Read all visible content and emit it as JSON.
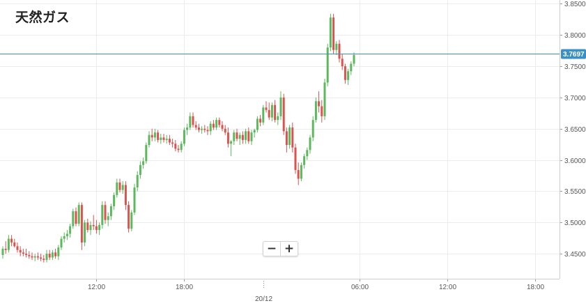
{
  "title": "天然ガス",
  "zoom": {
    "out_label": "−",
    "in_label": "+"
  },
  "colors": {
    "up": "#5cb85c",
    "down": "#d9534f",
    "grid": "#ececec",
    "price_line": "#3a8fc4",
    "axis": "#999999"
  },
  "chart_data": {
    "type": "candlestick",
    "title": "天然ガス",
    "y_ticks": [
      3.45,
      3.5,
      3.55,
      3.6,
      3.65,
      3.7,
      3.75,
      3.8,
      3.85
    ],
    "y_tick_labels": [
      "3.4500",
      "3.5000",
      "3.5500",
      "3.6000",
      "3.6500",
      "3.7000",
      "3.7500",
      "3.8000",
      "3.8500"
    ],
    "ylim": [
      3.41,
      3.856
    ],
    "x_ticks": [
      {
        "index": 32,
        "label": "12:00"
      },
      {
        "index": 62,
        "label": "18:00"
      },
      {
        "index": 89,
        "label": "20/12",
        "date_marker": true
      },
      {
        "index": 122,
        "label": "06:00"
      },
      {
        "index": 152,
        "label": "12:00"
      },
      {
        "index": 182,
        "label": "18:00"
      }
    ],
    "current_price": 3.7697,
    "current_price_label": "3.7697",
    "candles": [
      [
        3.448,
        3.462,
        3.442,
        3.458
      ],
      [
        3.458,
        3.47,
        3.45,
        3.456
      ],
      [
        3.456,
        3.48,
        3.452,
        3.474
      ],
      [
        3.474,
        3.48,
        3.462,
        3.468
      ],
      [
        3.468,
        3.474,
        3.46,
        3.462
      ],
      [
        3.462,
        3.468,
        3.452,
        3.456
      ],
      [
        3.456,
        3.462,
        3.446,
        3.452
      ],
      [
        3.452,
        3.458,
        3.446,
        3.45
      ],
      [
        3.45,
        3.458,
        3.444,
        3.448
      ],
      [
        3.448,
        3.454,
        3.442,
        3.446
      ],
      [
        3.446,
        3.452,
        3.44,
        3.444
      ],
      [
        3.444,
        3.45,
        3.438,
        3.446
      ],
      [
        3.446,
        3.452,
        3.44,
        3.444
      ],
      [
        3.444,
        3.45,
        3.438,
        3.442
      ],
      [
        3.442,
        3.448,
        3.436,
        3.44
      ],
      [
        3.44,
        3.456,
        3.436,
        3.45
      ],
      [
        3.45,
        3.456,
        3.44,
        3.444
      ],
      [
        3.444,
        3.456,
        3.44,
        3.452
      ],
      [
        3.452,
        3.458,
        3.442,
        3.446
      ],
      [
        3.446,
        3.464,
        3.44,
        3.46
      ],
      [
        3.46,
        3.478,
        3.456,
        3.474
      ],
      [
        3.474,
        3.484,
        3.468,
        3.478
      ],
      [
        3.478,
        3.488,
        3.472,
        3.482
      ],
      [
        3.482,
        3.498,
        3.476,
        3.494
      ],
      [
        3.494,
        3.522,
        3.49,
        3.518
      ],
      [
        3.518,
        3.524,
        3.494,
        3.498
      ],
      [
        3.498,
        3.532,
        3.494,
        3.528
      ],
      [
        3.528,
        3.532,
        3.456,
        3.468
      ],
      [
        3.468,
        3.504,
        3.462,
        3.5
      ],
      [
        3.5,
        3.506,
        3.484,
        3.488
      ],
      [
        3.488,
        3.502,
        3.48,
        3.496
      ],
      [
        3.496,
        3.512,
        3.488,
        3.494
      ],
      [
        3.494,
        3.504,
        3.482,
        3.488
      ],
      [
        3.488,
        3.5,
        3.48,
        3.496
      ],
      [
        3.496,
        3.534,
        3.49,
        3.528
      ],
      [
        3.528,
        3.534,
        3.498,
        3.504
      ],
      [
        3.504,
        3.516,
        3.494,
        3.51
      ],
      [
        3.51,
        3.53,
        3.504,
        3.526
      ],
      [
        3.526,
        3.548,
        3.52,
        3.544
      ],
      [
        3.544,
        3.57,
        3.54,
        3.564
      ],
      [
        3.564,
        3.57,
        3.548,
        3.552
      ],
      [
        3.552,
        3.566,
        3.546,
        3.56
      ],
      [
        3.56,
        3.566,
        3.52,
        3.528
      ],
      [
        3.528,
        3.534,
        3.484,
        3.49
      ],
      [
        3.49,
        3.52,
        3.486,
        3.516
      ],
      [
        3.516,
        3.562,
        3.512,
        3.556
      ],
      [
        3.556,
        3.582,
        3.55,
        3.576
      ],
      [
        3.576,
        3.598,
        3.57,
        3.592
      ],
      [
        3.592,
        3.604,
        3.586,
        3.598
      ],
      [
        3.598,
        3.628,
        3.594,
        3.624
      ],
      [
        3.624,
        3.646,
        3.62,
        3.64
      ],
      [
        3.64,
        3.65,
        3.63,
        3.636
      ],
      [
        3.636,
        3.65,
        3.63,
        3.644
      ],
      [
        3.644,
        3.648,
        3.628,
        3.632
      ],
      [
        3.632,
        3.642,
        3.626,
        3.636
      ],
      [
        3.636,
        3.642,
        3.628,
        3.632
      ],
      [
        3.632,
        3.64,
        3.626,
        3.634
      ],
      [
        3.634,
        3.64,
        3.624,
        3.628
      ],
      [
        3.628,
        3.634,
        3.62,
        3.626
      ],
      [
        3.626,
        3.632,
        3.614,
        3.618
      ],
      [
        3.618,
        3.624,
        3.612,
        3.616
      ],
      [
        3.616,
        3.63,
        3.612,
        3.626
      ],
      [
        3.626,
        3.652,
        3.622,
        3.648
      ],
      [
        3.648,
        3.658,
        3.64,
        3.652
      ],
      [
        3.652,
        3.676,
        3.648,
        3.67
      ],
      [
        3.67,
        3.676,
        3.652,
        3.656
      ],
      [
        3.656,
        3.662,
        3.648,
        3.652
      ],
      [
        3.652,
        3.658,
        3.644,
        3.648
      ],
      [
        3.648,
        3.654,
        3.642,
        3.65
      ],
      [
        3.65,
        3.656,
        3.644,
        3.648
      ],
      [
        3.648,
        3.654,
        3.64,
        3.646
      ],
      [
        3.646,
        3.662,
        3.64,
        3.658
      ],
      [
        3.658,
        3.664,
        3.648,
        3.652
      ],
      [
        3.652,
        3.668,
        3.648,
        3.664
      ],
      [
        3.664,
        3.668,
        3.652,
        3.656
      ],
      [
        3.656,
        3.662,
        3.646,
        3.65
      ],
      [
        3.65,
        3.656,
        3.64,
        3.644
      ],
      [
        3.644,
        3.652,
        3.62,
        3.626
      ],
      [
        3.626,
        3.632,
        3.606,
        3.63
      ],
      [
        3.63,
        3.648,
        3.624,
        3.644
      ],
      [
        3.644,
        3.65,
        3.63,
        3.634
      ],
      [
        3.634,
        3.644,
        3.624,
        3.64
      ],
      [
        3.64,
        3.646,
        3.626,
        3.632
      ],
      [
        3.632,
        3.65,
        3.626,
        3.646
      ],
      [
        3.646,
        3.652,
        3.626,
        3.63
      ],
      [
        3.63,
        3.648,
        3.624,
        3.644
      ],
      [
        3.644,
        3.65,
        3.636,
        3.648
      ],
      [
        3.648,
        3.67,
        3.644,
        3.666
      ],
      [
        3.666,
        3.672,
        3.654,
        3.66
      ],
      [
        3.66,
        3.688,
        3.656,
        3.684
      ],
      [
        3.684,
        3.694,
        3.676,
        3.68
      ],
      [
        3.68,
        3.692,
        3.664,
        3.668
      ],
      [
        3.668,
        3.692,
        3.662,
        3.688
      ],
      [
        3.688,
        3.696,
        3.66,
        3.664
      ],
      [
        3.664,
        3.676,
        3.656,
        3.67
      ],
      [
        3.67,
        3.71,
        3.664,
        3.7
      ],
      [
        3.7,
        3.706,
        3.64,
        3.646
      ],
      [
        3.646,
        3.652,
        3.612,
        3.624
      ],
      [
        3.624,
        3.656,
        3.618,
        3.652
      ],
      [
        3.652,
        3.66,
        3.612,
        3.62
      ],
      [
        3.62,
        3.626,
        3.578,
        3.584
      ],
      [
        3.584,
        3.596,
        3.56,
        3.57
      ],
      [
        3.57,
        3.596,
        3.566,
        3.592
      ],
      [
        3.592,
        3.61,
        3.586,
        3.606
      ],
      [
        3.606,
        3.62,
        3.6,
        3.616
      ],
      [
        3.616,
        3.64,
        3.61,
        3.636
      ],
      [
        3.636,
        3.67,
        3.63,
        3.664
      ],
      [
        3.664,
        3.7,
        3.66,
        3.694
      ],
      [
        3.694,
        3.71,
        3.676,
        3.686
      ],
      [
        3.686,
        3.696,
        3.66,
        3.67
      ],
      [
        3.67,
        3.73,
        3.664,
        3.724
      ],
      [
        3.724,
        3.786,
        3.718,
        3.78
      ],
      [
        3.78,
        3.834,
        3.774,
        3.828
      ],
      [
        3.828,
        3.834,
        3.77,
        3.776
      ],
      [
        3.776,
        3.79,
        3.768,
        3.786
      ],
      [
        3.786,
        3.792,
        3.756,
        3.762
      ],
      [
        3.762,
        3.77,
        3.744,
        3.75
      ],
      [
        3.75,
        3.754,
        3.722,
        3.728
      ],
      [
        3.728,
        3.746,
        3.72,
        3.742
      ],
      [
        3.742,
        3.758,
        3.736,
        3.754
      ],
      [
        3.754,
        3.772,
        3.75,
        3.768
      ]
    ]
  }
}
